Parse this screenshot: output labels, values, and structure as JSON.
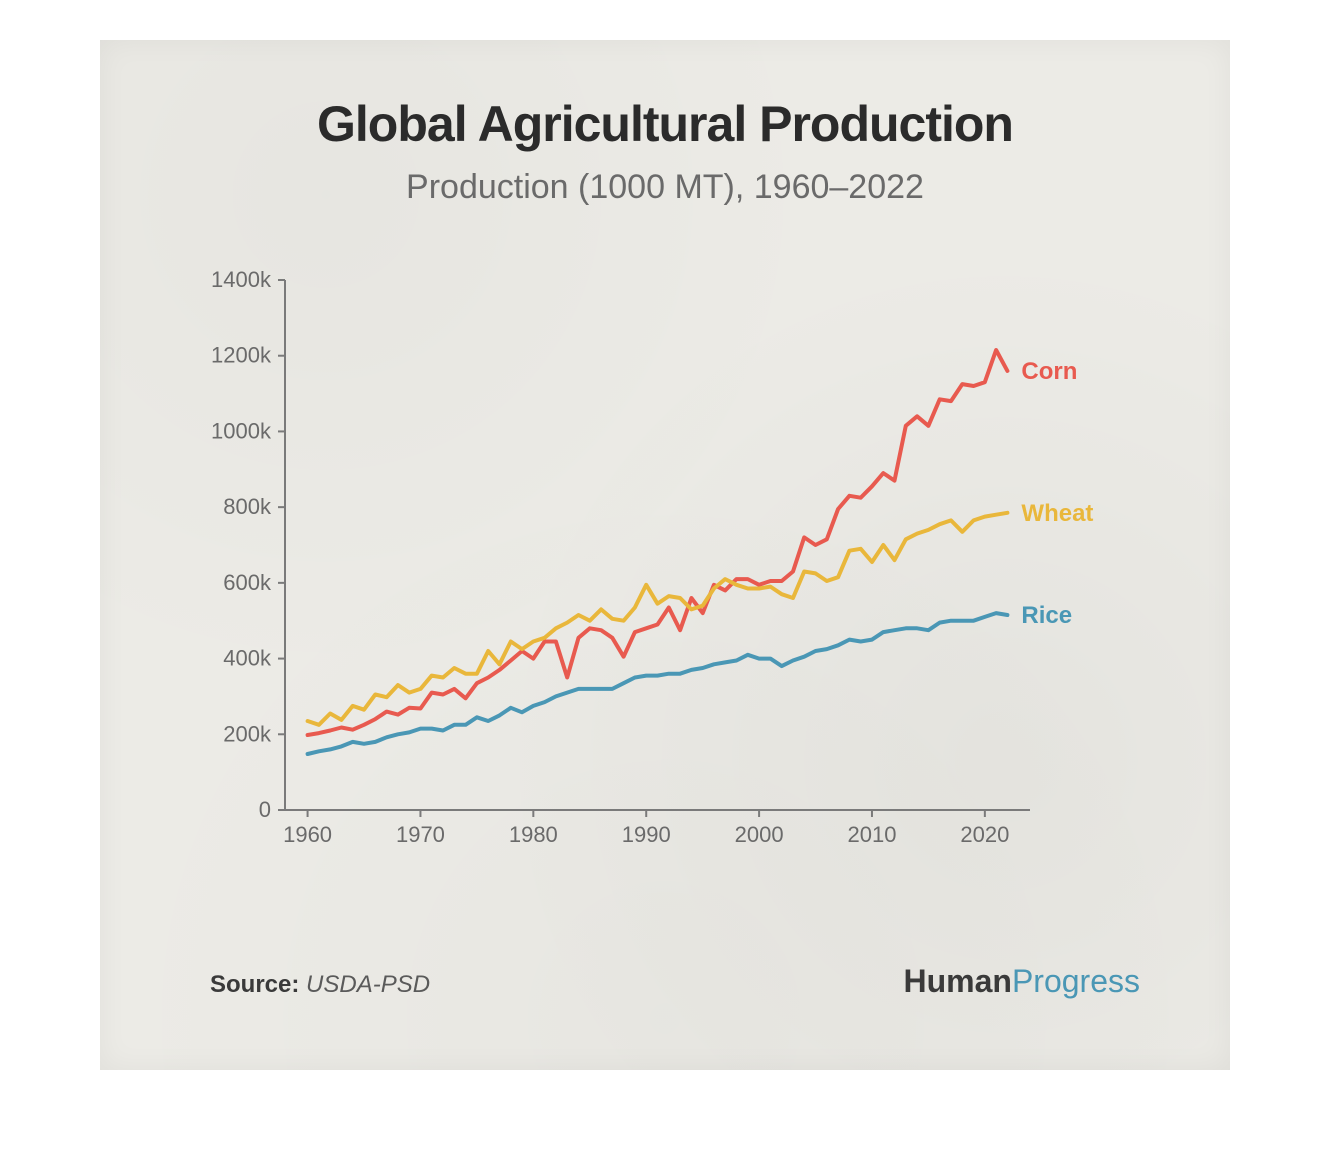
{
  "title": "Global Agricultural Production",
  "subtitle": "Production (1000 MT), 1960–2022",
  "title_fontsize": 50,
  "subtitle_fontsize": 34,
  "card_background": "#ecebe6",
  "axis_color": "#7a7a7a",
  "tick_label_color": "#6a6a6a",
  "tick_fontsize": 22,
  "series_label_fontsize": 24,
  "line_width": 4,
  "x": {
    "min": 1958,
    "max": 2024,
    "ticks": [
      1960,
      1970,
      1980,
      1990,
      2000,
      2010,
      2020
    ],
    "tick_labels": [
      "1960",
      "1970",
      "1980",
      "1990",
      "2000",
      "2010",
      "2020"
    ]
  },
  "y": {
    "min": 0,
    "max": 1400,
    "ticks": [
      0,
      200,
      400,
      600,
      800,
      1000,
      1200,
      1400
    ],
    "tick_labels": [
      "0",
      "200k",
      "400k",
      "600k",
      "800k",
      "1000k",
      "1200k",
      "1400k"
    ]
  },
  "series": [
    {
      "name": "Corn",
      "color": "#e85a4f",
      "label_color": "#e85a4f",
      "years": [
        1960,
        1961,
        1962,
        1963,
        1964,
        1965,
        1966,
        1967,
        1968,
        1969,
        1970,
        1971,
        1972,
        1973,
        1974,
        1975,
        1976,
        1977,
        1978,
        1979,
        1980,
        1981,
        1982,
        1983,
        1984,
        1985,
        1986,
        1987,
        1988,
        1989,
        1990,
        1991,
        1992,
        1993,
        1994,
        1995,
        1996,
        1997,
        1998,
        1999,
        2000,
        2001,
        2002,
        2003,
        2004,
        2005,
        2006,
        2007,
        2008,
        2009,
        2010,
        2011,
        2012,
        2013,
        2014,
        2015,
        2016,
        2017,
        2018,
        2019,
        2020,
        2021,
        2022
      ],
      "values": [
        198,
        203,
        210,
        218,
        212,
        225,
        240,
        260,
        252,
        270,
        268,
        310,
        305,
        320,
        295,
        335,
        350,
        370,
        395,
        420,
        400,
        445,
        445,
        350,
        455,
        480,
        475,
        455,
        405,
        470,
        480,
        490,
        535,
        475,
        560,
        520,
        595,
        580,
        610,
        610,
        595,
        605,
        605,
        630,
        720,
        700,
        715,
        795,
        830,
        825,
        855,
        890,
        870,
        1015,
        1040,
        1015,
        1085,
        1080,
        1125,
        1120,
        1130,
        1215,
        1160
      ]
    },
    {
      "name": "Wheat",
      "color": "#e9b73b",
      "label_color": "#e9b73b",
      "years": [
        1960,
        1961,
        1962,
        1963,
        1964,
        1965,
        1966,
        1967,
        1968,
        1969,
        1970,
        1971,
        1972,
        1973,
        1974,
        1975,
        1976,
        1977,
        1978,
        1979,
        1980,
        1981,
        1982,
        1983,
        1984,
        1985,
        1986,
        1987,
        1988,
        1989,
        1990,
        1991,
        1992,
        1993,
        1994,
        1995,
        1996,
        1997,
        1998,
        1999,
        2000,
        2001,
        2002,
        2003,
        2004,
        2005,
        2006,
        2007,
        2008,
        2009,
        2010,
        2011,
        2012,
        2013,
        2014,
        2015,
        2016,
        2017,
        2018,
        2019,
        2020,
        2021,
        2022
      ],
      "values": [
        235,
        225,
        255,
        238,
        275,
        265,
        305,
        298,
        330,
        310,
        320,
        355,
        350,
        375,
        360,
        360,
        420,
        385,
        445,
        425,
        445,
        455,
        480,
        495,
        515,
        500,
        530,
        505,
        500,
        535,
        595,
        545,
        565,
        560,
        530,
        540,
        585,
        610,
        595,
        585,
        585,
        590,
        570,
        560,
        630,
        625,
        605,
        615,
        685,
        690,
        655,
        700,
        660,
        715,
        730,
        740,
        755,
        765,
        735,
        765,
        775,
        780,
        785
      ]
    },
    {
      "name": "Rice",
      "color": "#4a97b5",
      "label_color": "#4a97b5",
      "years": [
        1960,
        1961,
        1962,
        1963,
        1964,
        1965,
        1966,
        1967,
        1968,
        1969,
        1970,
        1971,
        1972,
        1973,
        1974,
        1975,
        1976,
        1977,
        1978,
        1979,
        1980,
        1981,
        1982,
        1983,
        1984,
        1985,
        1986,
        1987,
        1988,
        1989,
        1990,
        1991,
        1992,
        1993,
        1994,
        1995,
        1996,
        1997,
        1998,
        1999,
        2000,
        2001,
        2002,
        2003,
        2004,
        2005,
        2006,
        2007,
        2008,
        2009,
        2010,
        2011,
        2012,
        2013,
        2014,
        2015,
        2016,
        2017,
        2018,
        2019,
        2020,
        2021,
        2022
      ],
      "values": [
        148,
        155,
        160,
        168,
        180,
        175,
        180,
        192,
        200,
        205,
        215,
        215,
        210,
        225,
        225,
        245,
        235,
        250,
        270,
        258,
        275,
        285,
        300,
        310,
        320,
        320,
        320,
        320,
        335,
        350,
        355,
        355,
        360,
        360,
        370,
        375,
        385,
        390,
        395,
        410,
        400,
        400,
        380,
        395,
        405,
        420,
        425,
        435,
        450,
        445,
        450,
        470,
        475,
        480,
        480,
        475,
        495,
        500,
        500,
        500,
        510,
        520,
        515
      ]
    }
  ],
  "footer": {
    "source_label": "Source:",
    "source_name": "USDA-PSD",
    "source_fontsize": 24,
    "brand_a": "Human",
    "brand_b": "Progress",
    "brand_fontsize": 32,
    "brand_b_color": "#4a97b5"
  }
}
